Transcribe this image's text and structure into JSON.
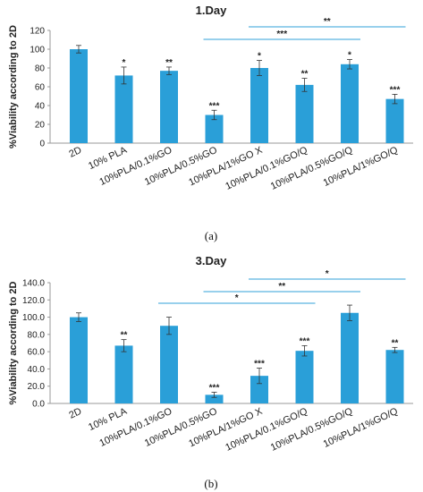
{
  "chart_data": [
    {
      "type": "bar",
      "title": "1.Day",
      "ylabel": "%Viability according to 2D",
      "xlabel": "",
      "ylim": [
        0,
        120
      ],
      "yticks": [
        "0",
        "20",
        "40",
        "60",
        "80",
        "100",
        "120"
      ],
      "categories": [
        "2D",
        "10% PLA",
        "10%PLA/0.1%GO",
        "10%PLA/0.5%GO",
        "10%PLA/1%GO X",
        "10%PLA/0.1%GO/Q",
        "10%PLA/0.5%GO/Q",
        "10%PLA/1%GO/Q"
      ],
      "values": [
        100,
        72,
        77,
        30,
        80,
        62,
        84,
        47
      ],
      "errors": [
        4,
        9,
        4,
        5,
        8,
        7,
        5,
        5
      ],
      "significance": [
        "",
        "*",
        "**",
        "***",
        "*",
        "**",
        "*",
        "***"
      ],
      "brackets": [
        {
          "from": 3,
          "to": 6,
          "label": "***"
        },
        {
          "from": 4,
          "to": 7,
          "label": "**"
        }
      ],
      "bar_color": "#2a9fd8",
      "line_color": "#5ab4e0",
      "grid": false,
      "caption": "(a)"
    },
    {
      "type": "bar",
      "title": "3.Day",
      "ylabel": "%Viability according to 2D",
      "xlabel": "",
      "ylim": [
        0,
        140
      ],
      "yticks": [
        "0.0",
        "20.0",
        "40.0",
        "60.0",
        "80.0",
        "100.0",
        "120.0",
        "140.0"
      ],
      "categories": [
        "2D",
        "10% PLA",
        "10%PLA/0.1%GO",
        "10%PLA/0.5%GO",
        "10%PLA/1%GO X",
        "10%PLA/0.1%GO/Q",
        "10%PLA/0.5%GO/Q",
        "10%PLA/1%GO/Q"
      ],
      "values": [
        100,
        67,
        90,
        10,
        32,
        61,
        105,
        62
      ],
      "errors": [
        5,
        7,
        10,
        3,
        9,
        6,
        9,
        3
      ],
      "significance": [
        "",
        "**",
        "",
        "***",
        "***",
        "***",
        "",
        "**"
      ],
      "brackets": [
        {
          "from": 2,
          "to": 5,
          "label": "*"
        },
        {
          "from": 3,
          "to": 6,
          "label": "**"
        },
        {
          "from": 4,
          "to": 7,
          "label": "*"
        }
      ],
      "bar_color": "#2a9fd8",
      "line_color": "#5ab4e0",
      "grid": false,
      "caption": "(b)"
    }
  ]
}
